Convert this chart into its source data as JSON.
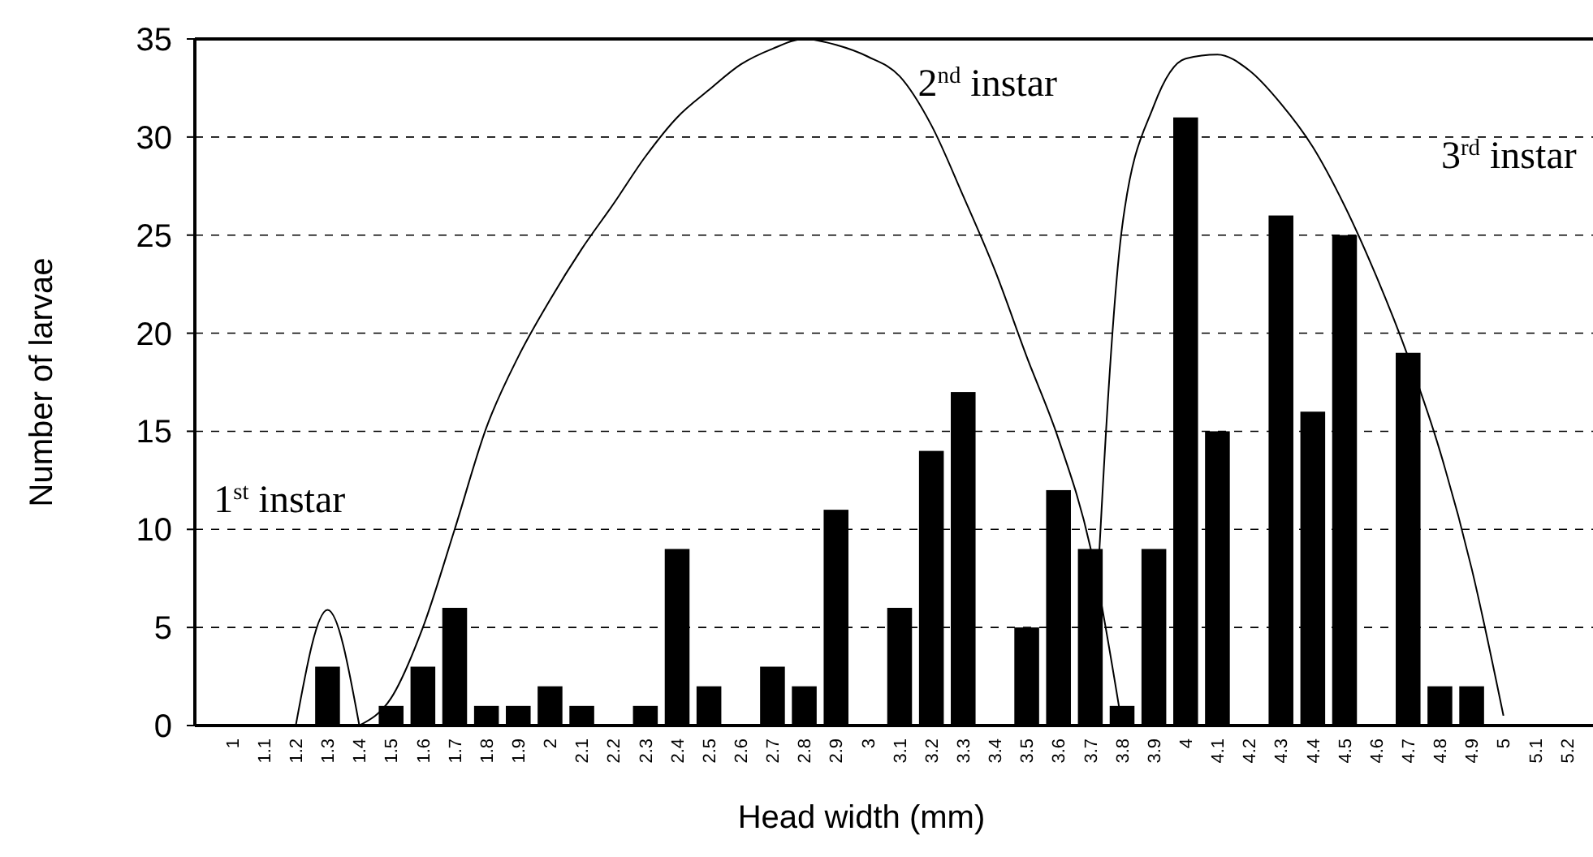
{
  "chart_data": {
    "type": "bar",
    "xlabel": "Head width (mm)",
    "ylabel": "Number of larvae",
    "categories": [
      "1",
      "1.1",
      "1.2",
      "1.3",
      "1.4",
      "1.5",
      "1.6",
      "1.7",
      "1.8",
      "1.9",
      "2",
      "2.1",
      "2.2",
      "2.3",
      "2.4",
      "2.5",
      "2.6",
      "2.7",
      "2.8",
      "2.9",
      "3",
      "3.1",
      "3.2",
      "3.3",
      "3.4",
      "3.5",
      "3.6",
      "3.7",
      "3.8",
      "3.9",
      "4",
      "4.1",
      "4.2",
      "4.3",
      "4.4",
      "4.5",
      "4.6",
      "4.7",
      "4.8",
      "4.9",
      "5",
      "5.1",
      "5.2"
    ],
    "series": [
      {
        "color": "#000000",
        "values": [
          0,
          0,
          0,
          3,
          0,
          1,
          3,
          6,
          1,
          1,
          2,
          1,
          0,
          1,
          9,
          2,
          0,
          3,
          2,
          11,
          0,
          6,
          14,
          17,
          0,
          5,
          12,
          9,
          1,
          9,
          31,
          15,
          0,
          26,
          16,
          25,
          0,
          19,
          2,
          2,
          0,
          0,
          0
        ]
      },
      {
        "type": "line",
        "color": "#000000",
        "x": [
          "1.2",
          "1.3",
          "1.4"
        ],
        "values": [
          0,
          5.9,
          0
        ]
      },
      {
        "type": "line",
        "color": "#000000",
        "x": [
          "1.4",
          "1.5",
          "1.6",
          "1.7",
          "1.8",
          "1.9",
          "2",
          "2.1",
          "2.2",
          "2.3",
          "2.4",
          "2.5",
          "2.6",
          "2.7",
          "2.8",
          "2.9",
          "3",
          "3.1",
          "3.2",
          "3.3",
          "3.4",
          "3.5",
          "3.6",
          "3.7",
          "3.8"
        ],
        "values": [
          0,
          1.4,
          5,
          10,
          15.2,
          18.8,
          21.7,
          24.3,
          26.6,
          29,
          31,
          32.4,
          33.7,
          34.5,
          35,
          34.7,
          34.1,
          33.1,
          30.6,
          27,
          23.2,
          18.8,
          14.6,
          9.1,
          0
        ]
      },
      {
        "type": "line",
        "color": "#000000",
        "x": [
          "3.7",
          "3.8",
          "3.9",
          "4",
          "4.1",
          "4.2",
          "4.3",
          "4.4",
          "4.5",
          "4.6",
          "4.7",
          "4.8",
          "4.9",
          "5"
        ],
        "values": [
          0,
          25.4,
          31.6,
          34,
          34.2,
          33.4,
          31.7,
          29.5,
          26.5,
          22.9,
          18.8,
          14,
          8,
          0.5
        ]
      }
    ],
    "ylim": [
      0,
      35
    ],
    "yticks": [
      0,
      5,
      10,
      15,
      20,
      25,
      30,
      35
    ],
    "grid": "y",
    "marker": "none",
    "line_style": "solid",
    "annotations": [
      "1$^{st}$ instar",
      "2$^{nd}$ instar",
      "3$^{rd}$ instar"
    ]
  }
}
